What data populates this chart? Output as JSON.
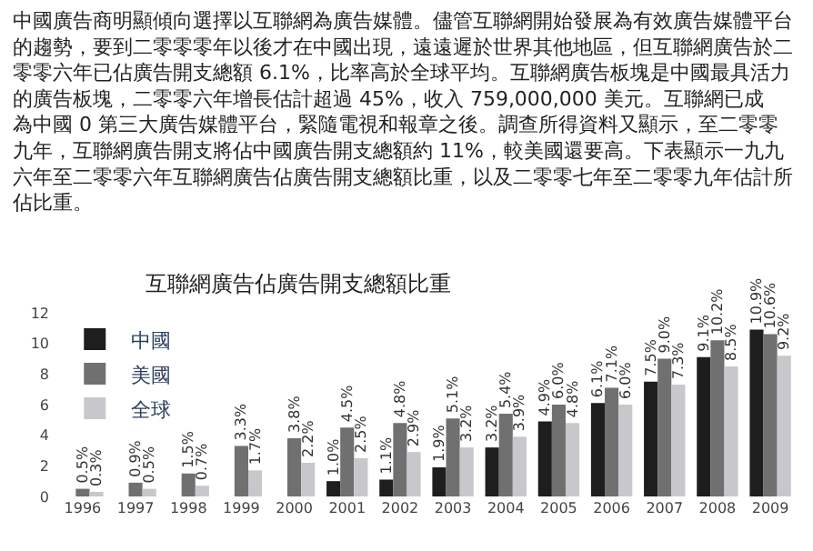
{
  "chart_data": {
    "type": "bar",
    "subtitle": "中國廣告商明顯傾向選擇以互聯網為廣告媒體。儘管互聯網開始發展為有效廣告媒體平台的趨勢，要到二零零零年以後才在中國出現，遠遠遲於世界其他地區，但互聯網廣告於二零零六年已佔廣告開支總額 6.1%，比率高於全球平均。互聯網廣告板塊是中國最具活力的廣告板塊，二零零六年增長估計超過 45%，收入 759,000,000 美元。互聯網已成為中國 0 第三大廣告媒體平台，緊隨電視和報章之後。調查所得資料又顯示，至二零零九年，互聯網廣告開支將佔中國廣告開支總額約 11%，較美國還要高。下表顯示一九九六年至二零零六年互聯網廣告佔廣告開支總額比重，以及二零零七年至二零零九年估計所佔比重。",
    "title": "互聯網廣告佔廣告開支總額比重",
    "categories": [
      "1996",
      "1997",
      "1998",
      "1999",
      "2000",
      "2001",
      "2002",
      "2003",
      "2004",
      "2005",
      "2006",
      "2007",
      "2008",
      "2009"
    ],
    "series": [
      {
        "name": "中國",
        "color": "#1e1e1e",
        "values": [
          null,
          null,
          null,
          null,
          null,
          1.0,
          1.1,
          1.9,
          3.2,
          4.9,
          6.1,
          7.5,
          9.1,
          10.9
        ],
        "value_labels": [
          null,
          null,
          null,
          null,
          null,
          "1.0%",
          "1.1%",
          "1.9%",
          "3.2%",
          "4.9%",
          "6.1%",
          "7.5%",
          "9.1%",
          "10.9%"
        ]
      },
      {
        "name": "美國",
        "color": "#707070",
        "values": [
          0.5,
          0.9,
          1.5,
          3.3,
          3.8,
          4.5,
          4.8,
          5.1,
          5.4,
          6.0,
          7.1,
          9.0,
          10.2,
          10.6
        ],
        "value_labels": [
          "0.5%",
          "0.9%",
          "1.5%",
          "3.3%",
          "3.8%",
          "4.5%",
          "4.8%",
          "5.1%",
          "5.4%",
          "6.0%",
          "7.1%",
          "9.0%",
          "10.2%",
          "10.6%"
        ]
      },
      {
        "name": "全球",
        "color": "#c8c8cc",
        "values": [
          0.3,
          0.5,
          0.7,
          1.7,
          2.2,
          2.5,
          2.9,
          3.2,
          3.9,
          4.8,
          6.0,
          7.3,
          8.5,
          9.2
        ],
        "value_labels": [
          "0.3%",
          "0.5%",
          "0.7%",
          "1.7%",
          "2.2%",
          "2.5%",
          "2.9%",
          "3.2%",
          "3.9%",
          "4.8%",
          "6.0%",
          "7.3%",
          "8.5%",
          "9.2%"
        ]
      }
    ],
    "ylim": [
      0,
      12
    ],
    "yticks": [
      0,
      2,
      4,
      6,
      8,
      10,
      12
    ],
    "legend": "top left"
  }
}
